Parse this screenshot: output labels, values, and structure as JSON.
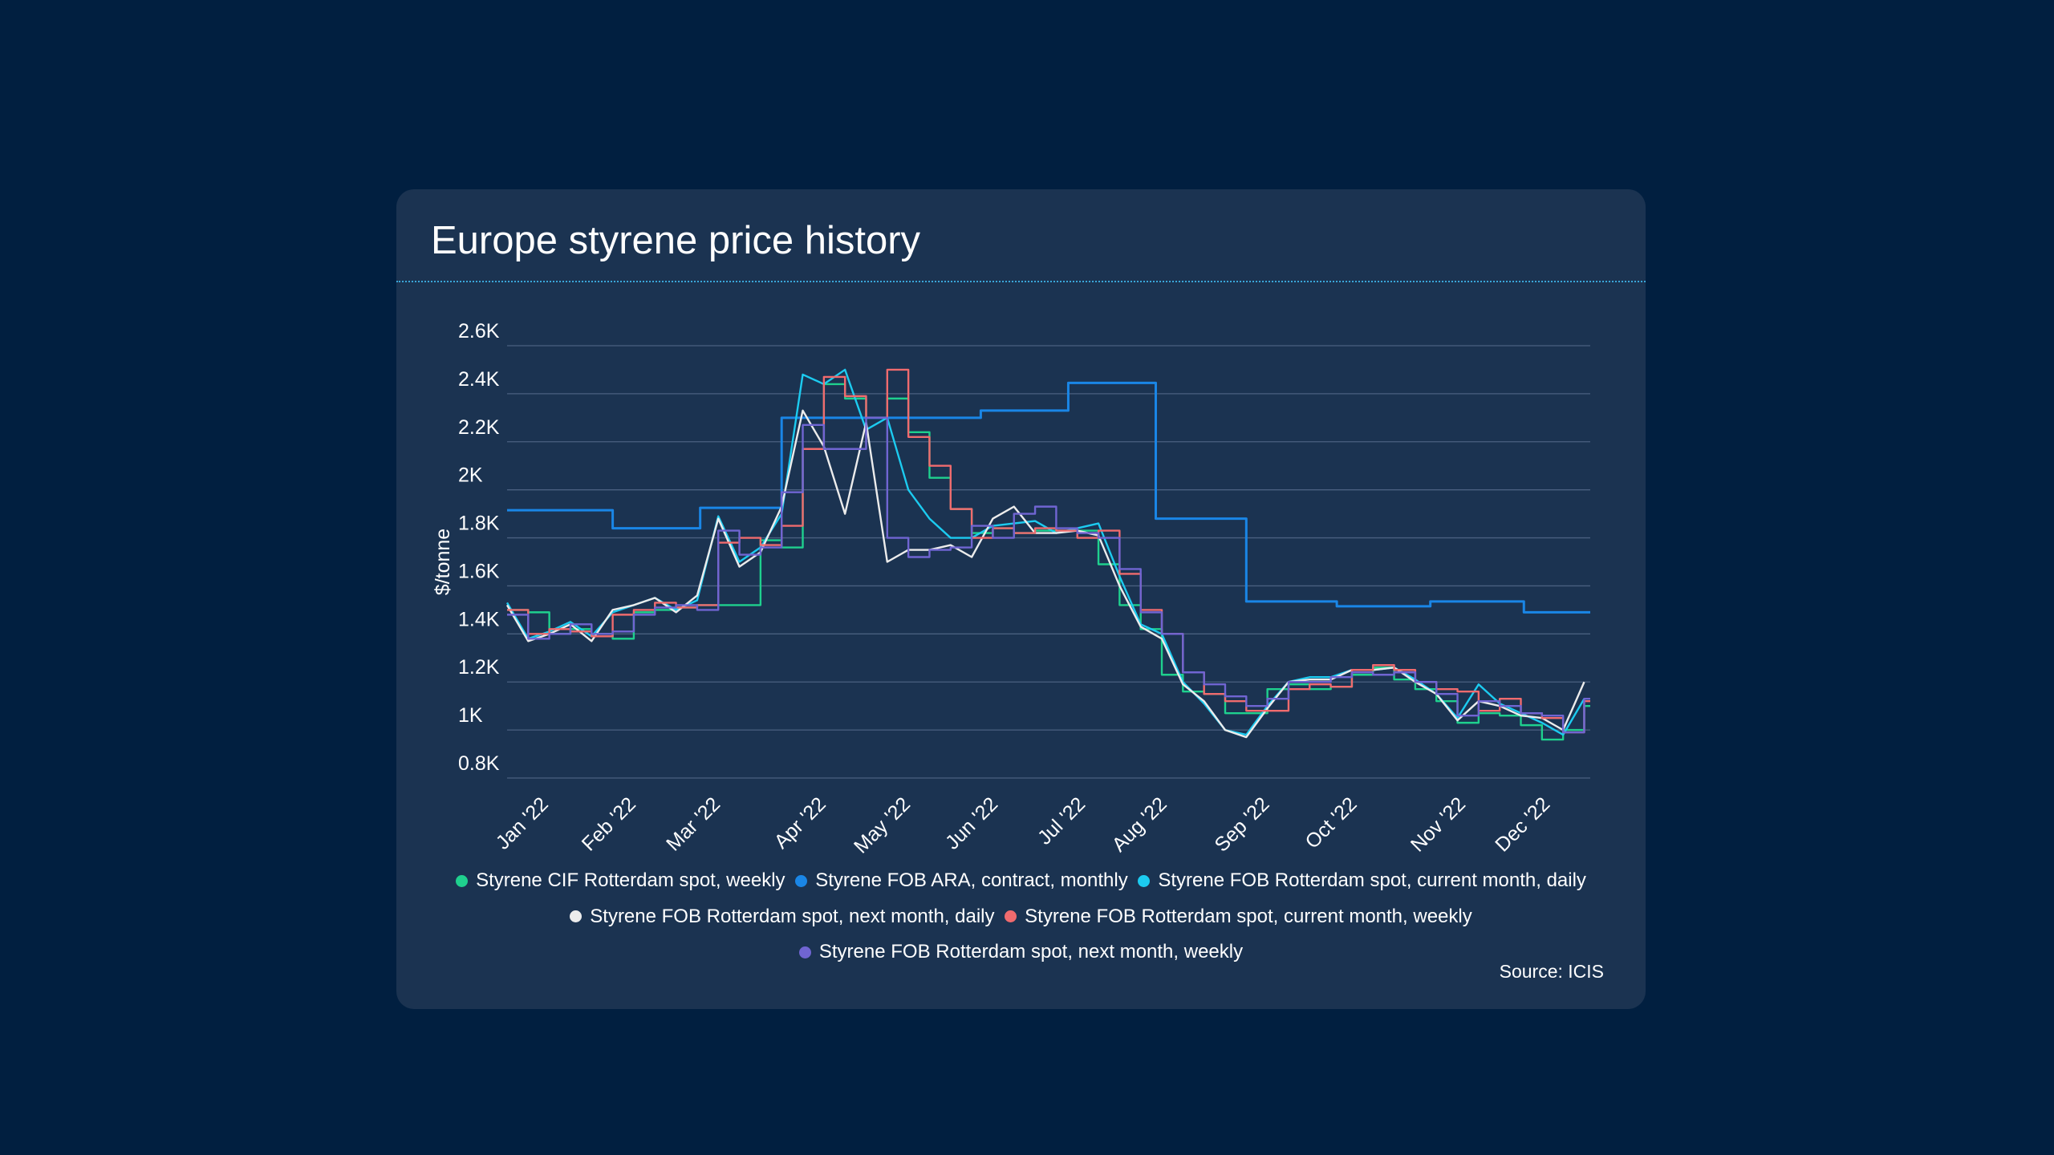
{
  "chart_data": {
    "type": "line",
    "title": "Europe styrene price history",
    "ylabel": "$/tonne",
    "xlabel": "",
    "ylim": [
      800,
      2600
    ],
    "xlim_day_of_year": [
      3,
      362
    ],
    "grid": true,
    "legend_placement": "bottom-center",
    "y_ticks": [
      {
        "value": 2600,
        "label": "2.6K"
      },
      {
        "value": 2400,
        "label": "2.4K"
      },
      {
        "value": 2200,
        "label": "2.2K"
      },
      {
        "value": 2000,
        "label": "2K"
      },
      {
        "value": 1800,
        "label": "1.8K"
      },
      {
        "value": 1600,
        "label": "1.6K"
      },
      {
        "value": 1400,
        "label": "1.4K"
      },
      {
        "value": 1200,
        "label": "1.2K"
      },
      {
        "value": 1000,
        "label": "1K"
      },
      {
        "value": 800,
        "label": "0.8K"
      }
    ],
    "x_ticks": [
      {
        "day": 17,
        "label": "Jan '22"
      },
      {
        "day": 46,
        "label": "Feb '22"
      },
      {
        "day": 74,
        "label": "Mar '22"
      },
      {
        "day": 109,
        "label": "Apr '22"
      },
      {
        "day": 137,
        "label": "May '22"
      },
      {
        "day": 166,
        "label": "Jun '22"
      },
      {
        "day": 195,
        "label": "Jul '22"
      },
      {
        "day": 222,
        "label": "Aug '22"
      },
      {
        "day": 256,
        "label": "Sep '22"
      },
      {
        "day": 285,
        "label": "Oct '22"
      },
      {
        "day": 321,
        "label": "Nov '22"
      },
      {
        "day": 349,
        "label": "Dec '22"
      }
    ],
    "x_days": [
      3,
      10,
      17,
      24,
      31,
      38,
      45,
      52,
      59,
      66,
      73,
      80,
      87,
      94,
      101,
      108,
      115,
      122,
      129,
      136,
      143,
      150,
      157,
      164,
      171,
      178,
      185,
      192,
      199,
      206,
      213,
      220,
      227,
      234,
      241,
      248,
      255,
      262,
      269,
      276,
      283,
      290,
      297,
      304,
      311,
      318,
      325,
      332,
      339,
      346,
      353,
      360
    ],
    "series": [
      {
        "name": "Styrene CIF Rotterdam spot, weekly",
        "color": "#1fd08e",
        "step": true,
        "values": [
          1500,
          1490,
          1400,
          1420,
          1400,
          1380,
          1490,
          1500,
          1510,
          1520,
          1520,
          1520,
          1790,
          1760,
          2170,
          2440,
          2380,
          2300,
          2380,
          2240,
          2050,
          1920,
          1820,
          1840,
          1820,
          1830,
          1830,
          1830,
          1690,
          1520,
          1420,
          1230,
          1160,
          1150,
          1070,
          1070,
          1170,
          1190,
          1170,
          1180,
          1230,
          1260,
          1210,
          1170,
          1120,
          1030,
          1070,
          1060,
          1020,
          960,
          1000,
          1100
        ]
      },
      {
        "name": "Styrene FOB ARA, contract, monthly",
        "color": "#1a86e6",
        "step": true,
        "points": [
          [
            3,
            1915
          ],
          [
            38,
            1840
          ],
          [
            67,
            1925
          ],
          [
            94,
            2300
          ],
          [
            160,
            2330
          ],
          [
            189,
            2445
          ],
          [
            218,
            1880
          ],
          [
            248,
            1535
          ],
          [
            278,
            1515
          ],
          [
            309,
            1535
          ],
          [
            340,
            1490
          ],
          [
            362,
            1490
          ]
        ]
      },
      {
        "name": "Styrene FOB Rotterdam spot, current month, daily",
        "color": "#1ccbf0",
        "step": false,
        "values": [
          1530,
          1380,
          1410,
          1450,
          1390,
          1490,
          1520,
          1550,
          1500,
          1540,
          1890,
          1700,
          1760,
          1900,
          2480,
          2440,
          2500,
          2250,
          2300,
          2000,
          1880,
          1800,
          1800,
          1850,
          1860,
          1870,
          1820,
          1840,
          1860,
          1640,
          1440,
          1400,
          1200,
          1110,
          1000,
          980,
          1100,
          1200,
          1220,
          1220,
          1250,
          1250,
          1260,
          1210,
          1150,
          1050,
          1190,
          1110,
          1070,
          1030,
          980,
          1130
        ]
      },
      {
        "name": "Styrene FOB Rotterdam spot, next month, daily",
        "color": "#ececec",
        "step": false,
        "values": [
          1520,
          1370,
          1400,
          1440,
          1370,
          1500,
          1520,
          1550,
          1490,
          1560,
          1880,
          1680,
          1740,
          1930,
          2330,
          2180,
          1900,
          2280,
          1700,
          1750,
          1750,
          1770,
          1720,
          1880,
          1930,
          1820,
          1820,
          1830,
          1810,
          1600,
          1430,
          1380,
          1190,
          1120,
          1000,
          970,
          1090,
          1200,
          1210,
          1210,
          1250,
          1250,
          1260,
          1200,
          1150,
          1040,
          1120,
          1100,
          1060,
          1050,
          1000,
          1200
        ]
      },
      {
        "name": "Styrene FOB Rotterdam spot, current month, weekly",
        "color": "#f06b6e",
        "step": true,
        "values": [
          1500,
          1400,
          1420,
          1410,
          1390,
          1480,
          1500,
          1530,
          1510,
          1520,
          1780,
          1800,
          1770,
          1850,
          2170,
          2470,
          2390,
          2300,
          2500,
          2220,
          2100,
          1920,
          1800,
          1840,
          1820,
          1840,
          1830,
          1800,
          1830,
          1650,
          1500,
          1400,
          1240,
          1150,
          1120,
          1080,
          1080,
          1170,
          1190,
          1180,
          1250,
          1270,
          1250,
          1200,
          1170,
          1160,
          1080,
          1130,
          1070,
          1050,
          990,
          1120
        ]
      },
      {
        "name": "Styrene FOB Rotterdam spot, next month, weekly",
        "color": "#7065d2",
        "step": true,
        "values": [
          1480,
          1380,
          1400,
          1440,
          1400,
          1410,
          1480,
          1510,
          1520,
          1500,
          1830,
          1730,
          1760,
          1990,
          2270,
          2170,
          2170,
          2300,
          1800,
          1720,
          1750,
          1760,
          1850,
          1800,
          1900,
          1930,
          1840,
          1820,
          1800,
          1670,
          1490,
          1400,
          1240,
          1190,
          1140,
          1100,
          1130,
          1200,
          1200,
          1220,
          1240,
          1230,
          1240,
          1200,
          1150,
          1060,
          1120,
          1100,
          1070,
          1060,
          990,
          1130
        ]
      }
    ],
    "source": "Source: ICIS"
  }
}
